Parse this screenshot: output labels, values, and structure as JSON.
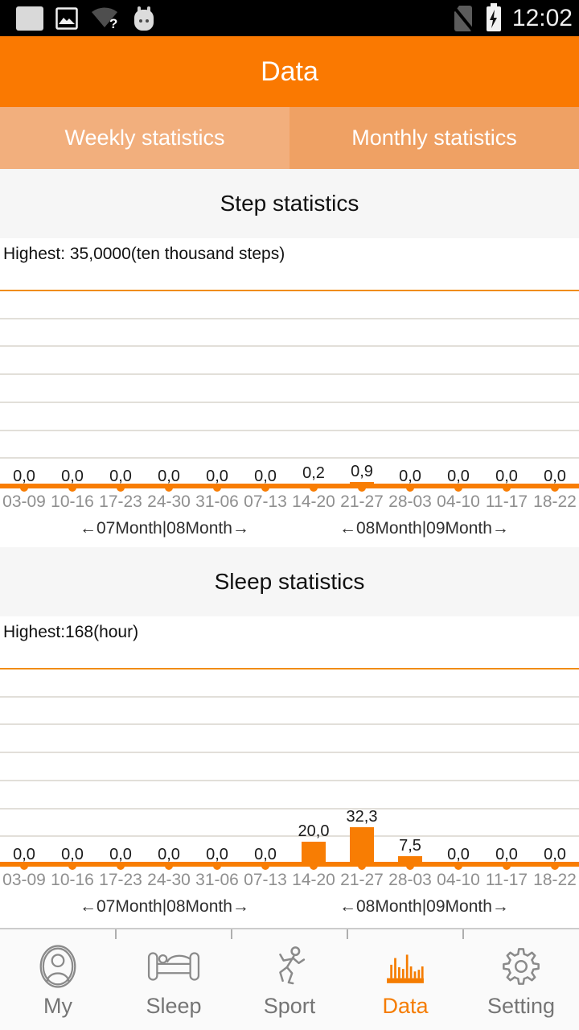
{
  "status_bar": {
    "time": "12:02",
    "icons": [
      "notification-square",
      "screenshot",
      "wifi-unknown",
      "android-mascot",
      "no-sim",
      "battery-charging"
    ]
  },
  "header": {
    "title": "Data"
  },
  "tabs": [
    {
      "label": "Weekly statistics",
      "active": true
    },
    {
      "label": "Monthly statistics",
      "active": false
    }
  ],
  "colors": {
    "header_bg": "#fa7901",
    "tab_weekly_bg": "#f2af7d",
    "tab_monthly_bg": "#efa164",
    "chart_accent": "#f87d03",
    "nav_active": "#f57c00",
    "nav_inactive": "#8a8a8a"
  },
  "chart_data": [
    {
      "type": "bar",
      "section_title": "Step statistics",
      "highest_label": "Highest: 35,0000(ten thousand steps)",
      "ylim": [
        0,
        35
      ],
      "gridline_count": 6,
      "grid": true,
      "legend_position": "none",
      "categories": [
        "03-09",
        "10-16",
        "17-23",
        "24-30",
        "31-06",
        "07-13",
        "14-20",
        "21-27",
        "28-03",
        "04-10",
        "11-17",
        "18-22"
      ],
      "values": [
        0.0,
        0.0,
        0.0,
        0.0,
        0.0,
        0.0,
        0.2,
        0.9,
        0.0,
        0.0,
        0.0,
        0.0
      ],
      "value_labels": [
        "0,0",
        "0,0",
        "0,0",
        "0,0",
        "0,0",
        "0,0",
        "0,2",
        "0,9",
        "0,0",
        "0,0",
        "0,0",
        "0,0"
      ],
      "month_labels": [
        "←07Month|08Month→",
        "←08Month|09Month→"
      ]
    },
    {
      "type": "bar",
      "section_title": "Sleep statistics",
      "highest_label": "Highest:168(hour)",
      "ylim": [
        0,
        168
      ],
      "gridline_count": 6,
      "grid": true,
      "legend_position": "none",
      "categories": [
        "03-09",
        "10-16",
        "17-23",
        "24-30",
        "31-06",
        "07-13",
        "14-20",
        "21-27",
        "28-03",
        "04-10",
        "11-17",
        "18-22"
      ],
      "values": [
        0.0,
        0.0,
        0.0,
        0.0,
        0.0,
        0.0,
        20.0,
        32.3,
        7.5,
        0.0,
        0.0,
        0.0
      ],
      "value_labels": [
        "0,0",
        "0,0",
        "0,0",
        "0,0",
        "0,0",
        "0,0",
        "20,0",
        "32,3",
        "7,5",
        "0,0",
        "0,0",
        "0,0"
      ],
      "month_labels": [
        "←07Month|08Month→",
        "←08Month|09Month→"
      ]
    }
  ],
  "bottom_nav": {
    "items": [
      {
        "label": "My",
        "icon": "person",
        "active": false
      },
      {
        "label": "Sleep",
        "icon": "bed",
        "active": false
      },
      {
        "label": "Sport",
        "icon": "runner",
        "active": false
      },
      {
        "label": "Data",
        "icon": "histogram",
        "active": true
      },
      {
        "label": "Setting",
        "icon": "gear",
        "active": false
      }
    ]
  }
}
